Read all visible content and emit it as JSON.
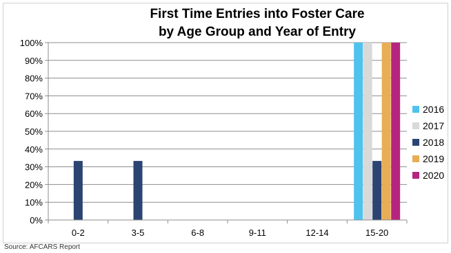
{
  "chart_data": {
    "type": "bar",
    "title_lines": [
      "First Time Entries into Foster Care",
      "by Age Group and Year of Entry"
    ],
    "categories": [
      "0-2",
      "3-5",
      "6-8",
      "9-11",
      "12-14",
      "15-20"
    ],
    "series": [
      {
        "name": "2016",
        "color": "#4fc3ee",
        "values": [
          0,
          0,
          0,
          0,
          0,
          100
        ]
      },
      {
        "name": "2017",
        "color": "#d9d9d9",
        "values": [
          0,
          0,
          0,
          0,
          0,
          100
        ]
      },
      {
        "name": "2018",
        "color": "#2b4472",
        "values": [
          33.3,
          33.3,
          0,
          0,
          0,
          33.3
        ]
      },
      {
        "name": "2019",
        "color": "#e8ad55",
        "values": [
          0,
          0,
          0,
          0,
          0,
          100
        ]
      },
      {
        "name": "2020",
        "color": "#b5257f",
        "values": [
          0,
          0,
          0,
          0,
          0,
          100
        ]
      }
    ],
    "ylim": [
      0,
      100
    ],
    "y_ticks": [
      0,
      10,
      20,
      30,
      40,
      50,
      60,
      70,
      80,
      90,
      100
    ],
    "y_tick_suffix": "%",
    "grid": true,
    "legend": "right"
  },
  "source_note": "Source: AFCARS Report"
}
